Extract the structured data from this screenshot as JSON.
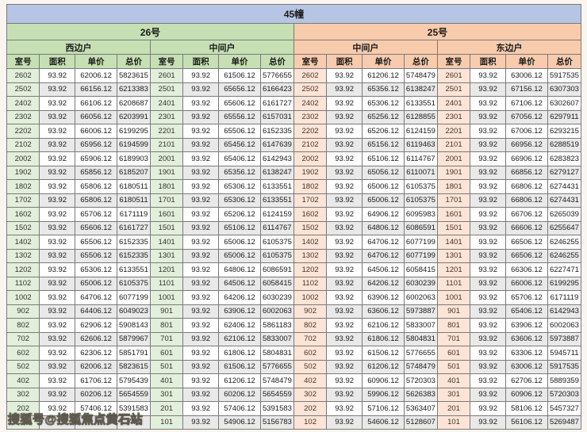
{
  "title": "45幢",
  "watermark": "搜狐号@搜狐焦点黄石站",
  "columns": [
    "室号",
    "面积",
    "单价",
    "总价"
  ],
  "colors": {
    "title_bg": "#b7c5e4",
    "building_26_header": "#c6e0b4",
    "building_26_room": "#e2efda",
    "building_25_header": "#f8cbad",
    "building_25_room": "#fce4d6",
    "row_alternate": "#e9e9e9",
    "border": "#7a7a7a"
  },
  "buildings": [
    {
      "name": "26号",
      "theme": "green",
      "units": [
        {
          "name": "西边户",
          "rows": [
            [
              "2602",
              "93.92",
              "62006.12",
              "5823615"
            ],
            [
              "2502",
              "93.92",
              "66156.12",
              "6213383"
            ],
            [
              "2402",
              "93.92",
              "66106.12",
              "6208687"
            ],
            [
              "2302",
              "93.92",
              "66056.12",
              "6203991"
            ],
            [
              "2202",
              "93.92",
              "66006.12",
              "6199295"
            ],
            [
              "2102",
              "93.92",
              "65956.12",
              "6194599"
            ],
            [
              "2002",
              "93.92",
              "65906.12",
              "6189903"
            ],
            [
              "1902",
              "93.92",
              "65856.12",
              "6185207"
            ],
            [
              "1802",
              "93.92",
              "65806.12",
              "6180511"
            ],
            [
              "1702",
              "93.92",
              "65806.12",
              "6180511"
            ],
            [
              "1602",
              "93.92",
              "65706.12",
              "6171119"
            ],
            [
              "1502",
              "93.92",
              "65606.12",
              "6161727"
            ],
            [
              "1402",
              "93.92",
              "65506.12",
              "6152335"
            ],
            [
              "1302",
              "93.92",
              "65506.12",
              "6152335"
            ],
            [
              "1202",
              "93.92",
              "65306.12",
              "6133551"
            ],
            [
              "1102",
              "93.92",
              "65006.12",
              "6105375"
            ],
            [
              "1002",
              "93.92",
              "64706.12",
              "6077199"
            ],
            [
              "902",
              "93.92",
              "64406.12",
              "6049023"
            ],
            [
              "802",
              "93.92",
              "62906.12",
              "5908143"
            ],
            [
              "702",
              "93.92",
              "62606.12",
              "5879967"
            ],
            [
              "602",
              "93.92",
              "62306.12",
              "5851791"
            ],
            [
              "502",
              "93.92",
              "62006.12",
              "5823615"
            ],
            [
              "402",
              "93.92",
              "61706.12",
              "5795439"
            ],
            [
              "302",
              "93.92",
              "60206.12",
              "5654559"
            ],
            [
              "202",
              "93.92",
              "57406.12",
              "5391583"
            ],
            [
              "",
              "",
              "",
              "743"
            ]
          ]
        },
        {
          "name": "中间户",
          "rows": [
            [
              "2601",
              "93.92",
              "61506.12",
              "5776655"
            ],
            [
              "2501",
              "93.92",
              "65656.12",
              "6166423"
            ],
            [
              "2401",
              "93.92",
              "65606.12",
              "6161727"
            ],
            [
              "2301",
              "93.92",
              "65556.12",
              "6157031"
            ],
            [
              "2201",
              "93.92",
              "65506.12",
              "6152335"
            ],
            [
              "2101",
              "93.92",
              "65456.12",
              "6147639"
            ],
            [
              "2001",
              "93.92",
              "65406.12",
              "6142943"
            ],
            [
              "1901",
              "93.92",
              "65356.12",
              "6138247"
            ],
            [
              "1801",
              "93.92",
              "65306.12",
              "6133551"
            ],
            [
              "1701",
              "93.92",
              "65306.12",
              "6133551"
            ],
            [
              "1601",
              "93.92",
              "65206.12",
              "6124159"
            ],
            [
              "1501",
              "93.92",
              "65106.12",
              "6114767"
            ],
            [
              "1401",
              "93.92",
              "65006.12",
              "6105375"
            ],
            [
              "1301",
              "93.92",
              "65006.12",
              "6105375"
            ],
            [
              "1201",
              "93.92",
              "64806.12",
              "6086591"
            ],
            [
              "1101",
              "93.92",
              "64506.12",
              "6058415"
            ],
            [
              "1001",
              "93.92",
              "64206.12",
              "6030239"
            ],
            [
              "901",
              "93.92",
              "63906.12",
              "6002063"
            ],
            [
              "801",
              "93.92",
              "62406.12",
              "5861183"
            ],
            [
              "701",
              "93.92",
              "62106.12",
              "5833007"
            ],
            [
              "601",
              "93.92",
              "61806.12",
              "5804831"
            ],
            [
              "501",
              "93.92",
              "61506.12",
              "5776655"
            ],
            [
              "401",
              "93.92",
              "61206.12",
              "5748479"
            ],
            [
              "301",
              "93.92",
              "60206.12",
              "5654559"
            ],
            [
              "201",
              "93.92",
              "57406.12",
              "5391583"
            ],
            [
              "101",
              "93.92",
              "54906.12",
              "5156783"
            ]
          ]
        }
      ]
    },
    {
      "name": "25号",
      "theme": "peach",
      "units": [
        {
          "name": "中间户",
          "rows": [
            [
              "2602",
              "93.92",
              "61206.12",
              "5748479"
            ],
            [
              "2502",
              "93.92",
              "65356.12",
              "6138247"
            ],
            [
              "2402",
              "93.92",
              "65306.12",
              "6133551"
            ],
            [
              "2302",
              "93.92",
              "65256.12",
              "6128855"
            ],
            [
              "2202",
              "93.92",
              "65206.12",
              "6124159"
            ],
            [
              "2102",
              "93.92",
              "65156.12",
              "6119463"
            ],
            [
              "2002",
              "93.92",
              "65106.12",
              "6114767"
            ],
            [
              "1902",
              "93.92",
              "65056.12",
              "6110071"
            ],
            [
              "1802",
              "93.92",
              "65006.12",
              "6105375"
            ],
            [
              "1702",
              "93.92",
              "65006.12",
              "6105375"
            ],
            [
              "1602",
              "93.92",
              "64906.12",
              "6095983"
            ],
            [
              "1502",
              "93.92",
              "64806.12",
              "6086591"
            ],
            [
              "1402",
              "93.92",
              "64706.12",
              "6077199"
            ],
            [
              "1302",
              "93.92",
              "64706.12",
              "6077199"
            ],
            [
              "1202",
              "93.92",
              "64506.12",
              "6058415"
            ],
            [
              "1102",
              "93.92",
              "64206.12",
              "6030239"
            ],
            [
              "1002",
              "93.92",
              "63906.12",
              "6002063"
            ],
            [
              "902",
              "93.92",
              "63606.12",
              "5973887"
            ],
            [
              "802",
              "93.92",
              "62106.12",
              "5833007"
            ],
            [
              "702",
              "93.92",
              "61806.12",
              "5804831"
            ],
            [
              "602",
              "93.92",
              "61506.12",
              "5776655"
            ],
            [
              "502",
              "93.92",
              "61206.12",
              "5748479"
            ],
            [
              "402",
              "93.92",
              "60906.12",
              "5720303"
            ],
            [
              "302",
              "93.92",
              "59906.12",
              "5626383"
            ],
            [
              "202",
              "93.92",
              "57106.12",
              "5363407"
            ],
            [
              "102",
              "93.92",
              "54606.12",
              "5128607"
            ]
          ]
        },
        {
          "name": "东边户",
          "rows": [
            [
              "2601",
              "93.92",
              "63006.12",
              "5917535"
            ],
            [
              "2501",
              "93.92",
              "67156.12",
              "6307303"
            ],
            [
              "2401",
              "93.92",
              "67106.12",
              "6302607"
            ],
            [
              "2301",
              "93.92",
              "67056.12",
              "6297911"
            ],
            [
              "2201",
              "93.92",
              "67006.12",
              "6293215"
            ],
            [
              "2101",
              "93.92",
              "66956.12",
              "6288519"
            ],
            [
              "2001",
              "93.92",
              "66906.12",
              "6283823"
            ],
            [
              "1901",
              "93.92",
              "66856.12",
              "6279127"
            ],
            [
              "1801",
              "93.92",
              "66806.12",
              "6274431"
            ],
            [
              "1701",
              "93.92",
              "66806.12",
              "6274431"
            ],
            [
              "1601",
              "93.92",
              "66706.12",
              "6265039"
            ],
            [
              "1501",
              "93.92",
              "66606.12",
              "6255647"
            ],
            [
              "1401",
              "93.92",
              "66506.12",
              "6246255"
            ],
            [
              "1301",
              "93.92",
              "66506.12",
              "6246255"
            ],
            [
              "1201",
              "93.92",
              "66306.12",
              "6227471"
            ],
            [
              "1101",
              "93.92",
              "66006.12",
              "6199295"
            ],
            [
              "1001",
              "93.92",
              "65706.12",
              "6171119"
            ],
            [
              "901",
              "93.92",
              "65406.12",
              "6142943"
            ],
            [
              "801",
              "93.92",
              "63906.12",
              "6002063"
            ],
            [
              "701",
              "93.92",
              "63606.12",
              "5973887"
            ],
            [
              "601",
              "93.92",
              "63306.12",
              "5945711"
            ],
            [
              "501",
              "93.92",
              "63006.12",
              "5917535"
            ],
            [
              "401",
              "93.92",
              "62706.12",
              "5889359"
            ],
            [
              "301",
              "93.92",
              "60906.12",
              "5720303"
            ],
            [
              "201",
              "93.92",
              "58106.12",
              "5457327"
            ],
            [
              "101",
              "93.92",
              "56106.12",
              "5269487"
            ]
          ]
        }
      ]
    }
  ]
}
